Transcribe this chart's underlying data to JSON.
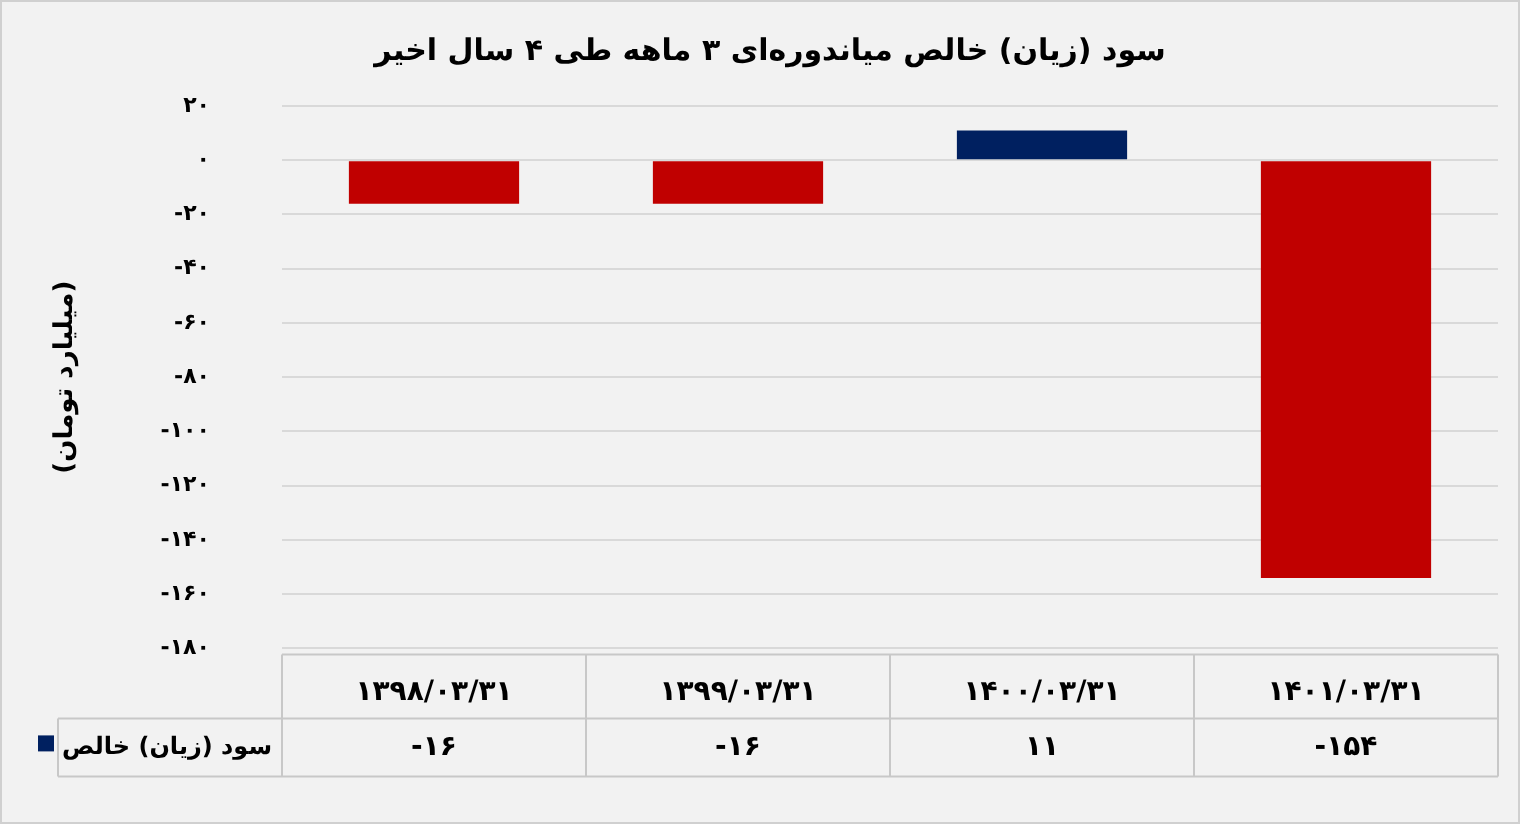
{
  "chart_data": {
    "type": "bar",
    "title": "سود (زیان) خالص میاندوره‌ای ۳ ماهه طی ۴ سال اخیر",
    "ylabel": "(میلیارد تومان)",
    "categories": [
      "۱۳۹۸/۰۳/۳۱",
      "۱۳۹۹/۰۳/۳۱",
      "۱۴۰۰/۰۳/۳۱",
      "۱۴۰۱/۰۳/۳۱"
    ],
    "series": [
      {
        "name": "سود (زیان) خالص",
        "color": "#002060",
        "colors": [
          "#c00000",
          "#c00000",
          "#002060",
          "#c00000"
        ],
        "values": [
          -16,
          -16,
          11,
          -154
        ],
        "value_labels": [
          "-۱۶",
          "-۱۶",
          "۱۱",
          "-۱۵۴"
        ]
      }
    ],
    "ylim": [
      -180,
      20
    ],
    "yticks": [
      {
        "value": 20,
        "label": "۲۰"
      },
      {
        "value": 0,
        "label": "۰"
      },
      {
        "value": -20,
        "label": "-۲۰"
      },
      {
        "value": -40,
        "label": "-۴۰"
      },
      {
        "value": -60,
        "label": "-۶۰"
      },
      {
        "value": -80,
        "label": "-۸۰"
      },
      {
        "value": -100,
        "label": "-۱۰۰"
      },
      {
        "value": -120,
        "label": "-۱۲۰"
      },
      {
        "value": -140,
        "label": "-۱۴۰"
      },
      {
        "value": -160,
        "label": "-۱۶۰"
      },
      {
        "value": -180,
        "label": "-۱۸۰"
      }
    ],
    "grid": "y",
    "legend": "bottom left"
  }
}
